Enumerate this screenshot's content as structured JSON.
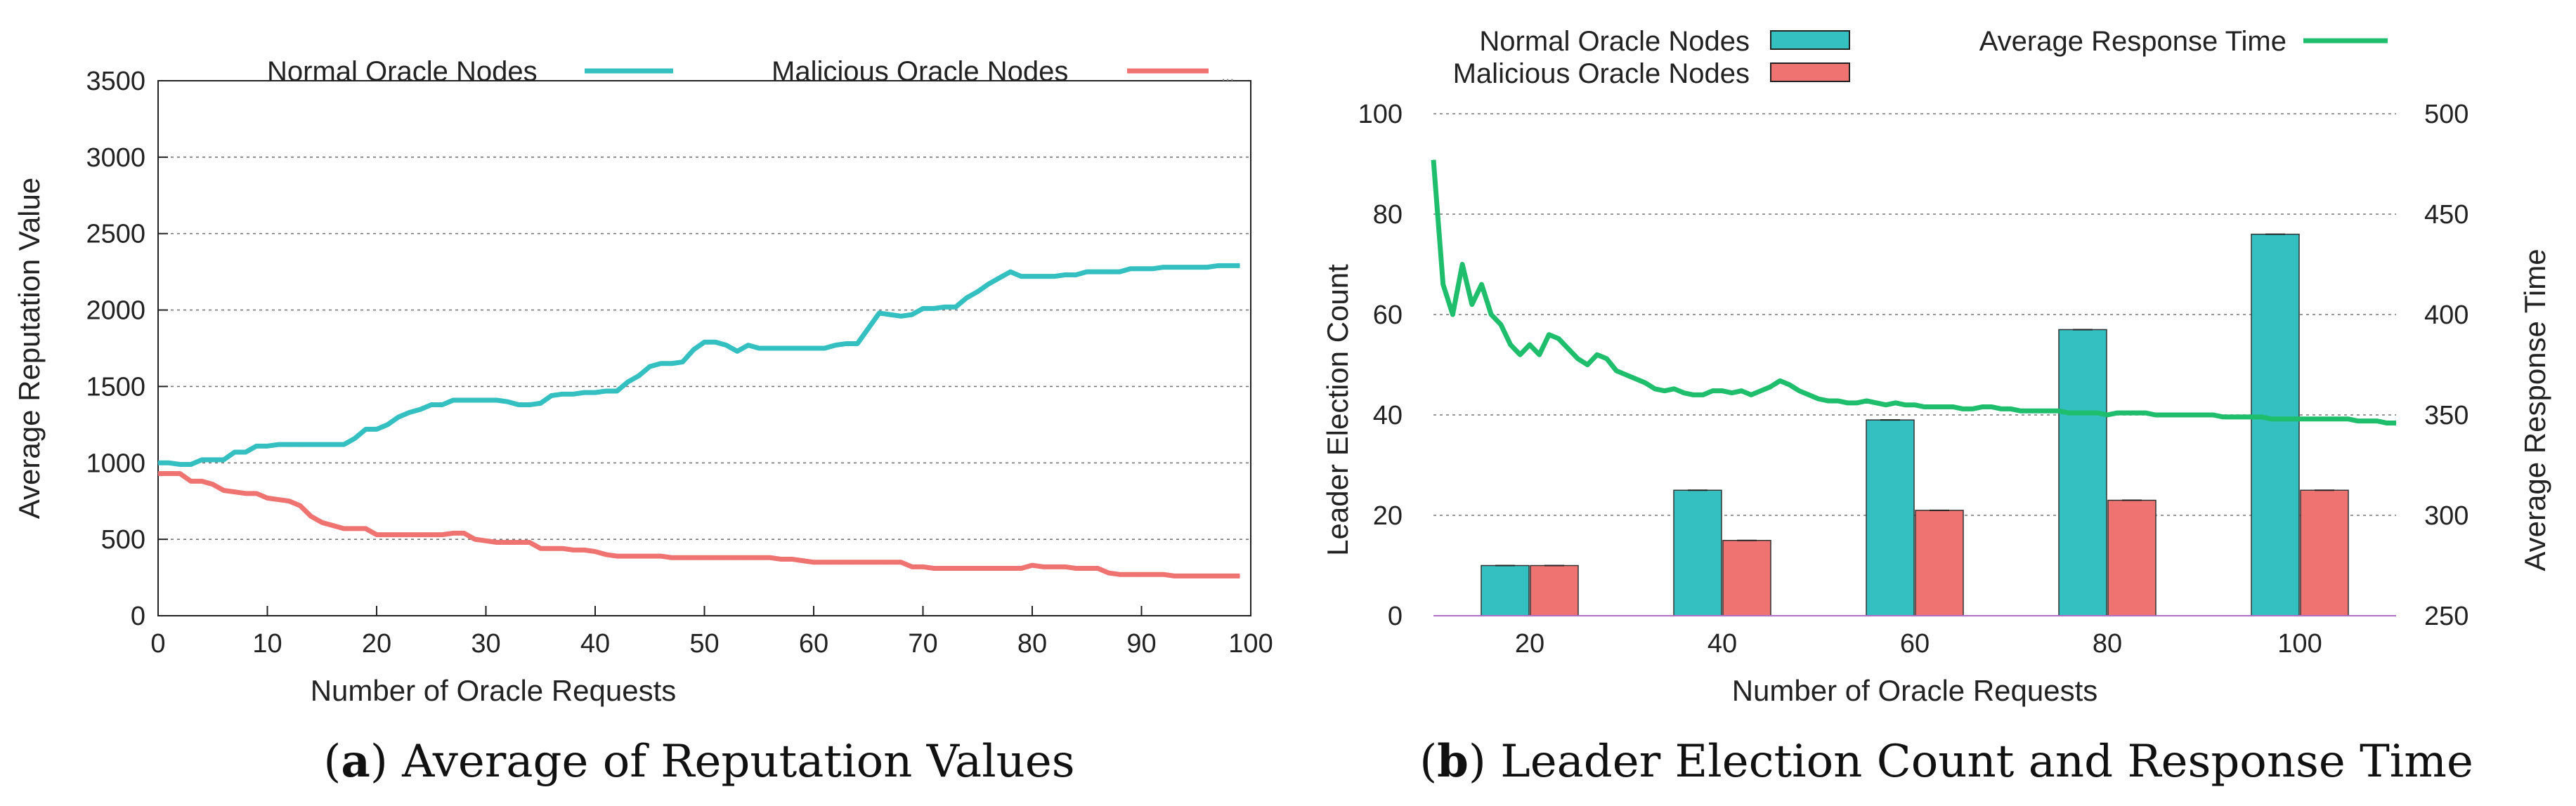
{
  "colors": {
    "normal": "#34bfc1",
    "malicious": "#ef7370",
    "response": "#1fbe6c",
    "baseline": "#b070c8"
  },
  "captions": {
    "a_letter": "a",
    "a_text": " Average of Reputation Values",
    "b_letter": "b",
    "b_text": " Leader Election Count and Response Time"
  },
  "chart_data": [
    {
      "type": "line",
      "title": "Average of Reputation Values",
      "xlabel": "Number of Oracle Requests",
      "ylabel": "Average Reputation Value",
      "xlim": [
        0,
        100
      ],
      "ylim": [
        0,
        3500
      ],
      "xticks": [
        "0",
        "10",
        "20",
        "30",
        "40",
        "50",
        "60",
        "70",
        "80",
        "90",
        "100"
      ],
      "yticks": [
        "0",
        "500",
        "1000",
        "1500",
        "2000",
        "2500",
        "3000",
        "3500"
      ],
      "legend": [
        "Normal Oracle Nodes",
        "Malicious Oracle Nodes"
      ],
      "legend_trailing_mark": "...",
      "series": [
        {
          "name": "Normal Oracle Nodes",
          "x": [
            0,
            1,
            2,
            3,
            4,
            5,
            6,
            7,
            8,
            9,
            10,
            11,
            12,
            13,
            14,
            15,
            16,
            17,
            18,
            19,
            20,
            21,
            22,
            23,
            24,
            25,
            26,
            27,
            28,
            29,
            30,
            31,
            32,
            33,
            34,
            35,
            36,
            37,
            38,
            39,
            40,
            41,
            42,
            43,
            44,
            45,
            46,
            47,
            48,
            49,
            50,
            51,
            52,
            53,
            54,
            55,
            56,
            57,
            58,
            59,
            60,
            61,
            62,
            63,
            64,
            65,
            66,
            67,
            68,
            69,
            70,
            71,
            72,
            73,
            74,
            75,
            76,
            77,
            78,
            79,
            80,
            81,
            82,
            83,
            84,
            85,
            86,
            87,
            88,
            89,
            90,
            91,
            92,
            93,
            94,
            95,
            96,
            97,
            98,
            99
          ],
          "values": [
            1000,
            1000,
            990,
            990,
            1020,
            1020,
            1020,
            1070,
            1070,
            1110,
            1110,
            1120,
            1120,
            1120,
            1120,
            1120,
            1120,
            1120,
            1160,
            1220,
            1220,
            1250,
            1300,
            1330,
            1350,
            1380,
            1380,
            1410,
            1410,
            1410,
            1410,
            1410,
            1400,
            1380,
            1380,
            1390,
            1440,
            1450,
            1450,
            1460,
            1460,
            1470,
            1470,
            1530,
            1570,
            1630,
            1650,
            1650,
            1660,
            1740,
            1790,
            1790,
            1770,
            1730,
            1770,
            1750,
            1750,
            1750,
            1750,
            1750,
            1750,
            1750,
            1770,
            1780,
            1780,
            1880,
            1980,
            1970,
            1960,
            1970,
            2010,
            2010,
            2020,
            2020,
            2080,
            2120,
            2170,
            2210,
            2250,
            2220,
            2220,
            2220,
            2220,
            2230,
            2230,
            2250,
            2250,
            2250,
            2250,
            2270,
            2270,
            2270,
            2280,
            2280,
            2280,
            2280,
            2280,
            2290,
            2290,
            2290
          ]
        },
        {
          "name": "Malicious Oracle Nodes",
          "x": [
            0,
            1,
            2,
            3,
            4,
            5,
            6,
            7,
            8,
            9,
            10,
            11,
            12,
            13,
            14,
            15,
            16,
            17,
            18,
            19,
            20,
            21,
            22,
            23,
            24,
            25,
            26,
            27,
            28,
            29,
            30,
            31,
            32,
            33,
            34,
            35,
            36,
            37,
            38,
            39,
            40,
            41,
            42,
            43,
            44,
            45,
            46,
            47,
            48,
            49,
            50,
            51,
            52,
            53,
            54,
            55,
            56,
            57,
            58,
            59,
            60,
            61,
            62,
            63,
            64,
            65,
            66,
            67,
            68,
            69,
            70,
            71,
            72,
            73,
            74,
            75,
            76,
            77,
            78,
            79,
            80,
            81,
            82,
            83,
            84,
            85,
            86,
            87,
            88,
            89,
            90,
            91,
            92,
            93,
            94,
            95,
            96,
            97,
            98,
            99
          ],
          "values": [
            930,
            930,
            930,
            880,
            880,
            860,
            820,
            810,
            800,
            800,
            770,
            760,
            750,
            720,
            650,
            610,
            590,
            570,
            570,
            570,
            530,
            530,
            530,
            530,
            530,
            530,
            530,
            540,
            540,
            500,
            490,
            480,
            480,
            480,
            480,
            440,
            440,
            440,
            430,
            430,
            420,
            400,
            390,
            390,
            390,
            390,
            390,
            380,
            380,
            380,
            380,
            380,
            380,
            380,
            380,
            380,
            380,
            370,
            370,
            360,
            350,
            350,
            350,
            350,
            350,
            350,
            350,
            350,
            350,
            320,
            320,
            310,
            310,
            310,
            310,
            310,
            310,
            310,
            310,
            310,
            330,
            320,
            320,
            320,
            310,
            310,
            310,
            280,
            270,
            270,
            270,
            270,
            270,
            260,
            260,
            260,
            260,
            260,
            260,
            260
          ]
        }
      ]
    },
    {
      "type": "bar",
      "title": "Leader Election Count and Response Time",
      "xlabel": "Number of Oracle Requests",
      "ylabel": "Leader Election Count",
      "ylabel_right": "Average Response Time",
      "categories": [
        "20",
        "40",
        "60",
        "80",
        "100"
      ],
      "ylim": [
        0,
        100
      ],
      "ylim_right": [
        250,
        500
      ],
      "yticks": [
        "0",
        "20",
        "40",
        "60",
        "80",
        "100"
      ],
      "yticks_right": [
        "250",
        "300",
        "350",
        "400",
        "450",
        "500"
      ],
      "legend": [
        "Normal Oracle Nodes",
        "Malicious Oracle Nodes",
        "Average Response Time"
      ],
      "series": [
        {
          "name": "Normal Oracle Nodes",
          "values": [
            10,
            25,
            39,
            57,
            76
          ]
        },
        {
          "name": "Malicious Oracle Nodes",
          "values": [
            10,
            15,
            21,
            23,
            25
          ]
        }
      ],
      "line_series": {
        "name": "Average Response Time",
        "axis": "right",
        "x": [
          10,
          11,
          12,
          13,
          14,
          15,
          16,
          17,
          18,
          19,
          20,
          21,
          22,
          23,
          24,
          25,
          26,
          27,
          28,
          29,
          30,
          31,
          32,
          33,
          34,
          35,
          36,
          37,
          38,
          39,
          40,
          41,
          42,
          43,
          44,
          45,
          46,
          47,
          48,
          49,
          50,
          51,
          52,
          53,
          54,
          55,
          56,
          57,
          58,
          59,
          60,
          61,
          62,
          63,
          64,
          65,
          66,
          67,
          68,
          69,
          70,
          71,
          72,
          73,
          74,
          75,
          76,
          77,
          78,
          79,
          80,
          81,
          82,
          83,
          84,
          85,
          86,
          87,
          88,
          89,
          90,
          91,
          92,
          93,
          94,
          95,
          96,
          97,
          98,
          99,
          100,
          101,
          102,
          103,
          104,
          105,
          106,
          107,
          108,
          109,
          110
        ],
        "values": [
          477,
          415,
          400,
          425,
          405,
          415,
          400,
          395,
          385,
          380,
          385,
          380,
          390,
          388,
          383,
          378,
          375,
          380,
          378,
          372,
          370,
          368,
          366,
          363,
          362,
          363,
          361,
          360,
          360,
          362,
          362,
          361,
          362,
          360,
          362,
          364,
          367,
          365,
          362,
          360,
          358,
          357,
          357,
          356,
          356,
          357,
          356,
          355,
          356,
          355,
          355,
          354,
          354,
          354,
          354,
          353,
          353,
          354,
          354,
          353,
          353,
          352,
          352,
          352,
          352,
          352,
          351,
          351,
          351,
          351,
          350,
          351,
          351,
          351,
          351,
          350,
          350,
          350,
          350,
          350,
          350,
          350,
          349,
          349,
          349,
          349,
          349,
          348,
          348,
          348,
          348,
          348,
          348,
          348,
          348,
          348,
          347,
          347,
          347,
          346,
          346
        ]
      }
    }
  ]
}
